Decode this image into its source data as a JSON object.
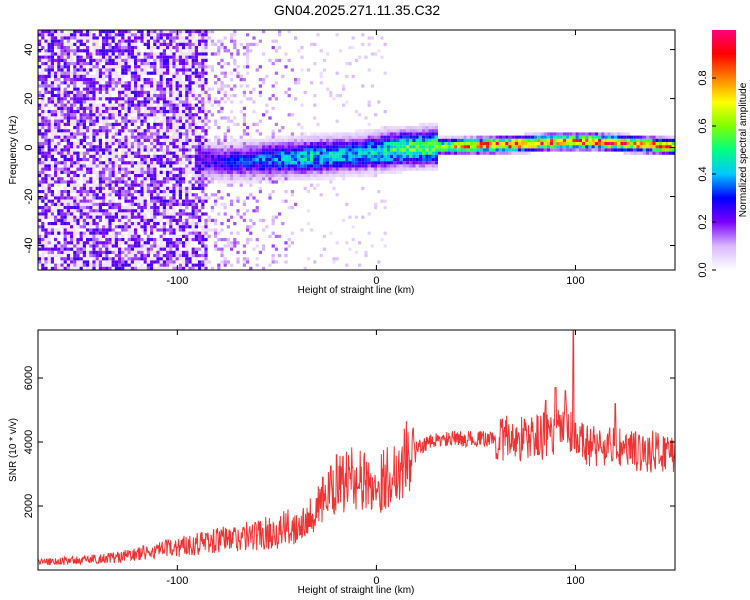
{
  "title": "GN04.2025.271.11.35.C32",
  "chart_data": [
    {
      "type": "heatmap",
      "xlabel": "Height of straight line (km)",
      "ylabel": "Frequency (Hz)",
      "xlim": [
        -170,
        150
      ],
      "ylim": [
        -50,
        48
      ],
      "xticks": [
        -100,
        0,
        100
      ],
      "yticks": [
        -40,
        -20,
        0,
        20,
        40
      ],
      "grid": false,
      "colorbar": {
        "label": "Normalized spectral amplitude",
        "range": [
          0.0,
          1.0
        ],
        "ticks": [
          0.0,
          0.2,
          0.4,
          0.6,
          0.8
        ],
        "colors": [
          "#ffffff",
          "#d9b8ff",
          "#7a00ff",
          "#0000ff",
          "#00c8ff",
          "#00ff80",
          "#80ff00",
          "#ffff00",
          "#ff8000",
          "#ff0000",
          "#ff0080"
        ]
      },
      "ridge": {
        "x": [
          -90,
          -70,
          -50,
          -30,
          -10,
          10,
          30,
          50,
          70,
          90,
          110,
          130,
          150
        ],
        "frequency": [
          -5,
          -5,
          -4,
          -3,
          -2,
          0,
          1,
          1.5,
          2,
          3,
          3,
          2,
          1
        ],
        "amplitude": [
          0.25,
          0.3,
          0.4,
          0.45,
          0.4,
          0.55,
          0.6,
          0.85,
          0.9,
          0.85,
          0.9,
          0.85,
          0.8
        ]
      }
    },
    {
      "type": "line",
      "xlabel": "Height of straight line (km)",
      "ylabel": "SNR (10 * v/v)",
      "xlim": [
        -170,
        150
      ],
      "ylim": [
        0,
        7500
      ],
      "xticks": [
        -100,
        0,
        100
      ],
      "yticks": [
        2000,
        4000,
        6000
      ],
      "grid": false,
      "color": "#ee3333",
      "series": [
        {
          "x": [
            -170,
            -150,
            -130,
            -110,
            -90,
            -70,
            -50,
            -40,
            -30,
            -25,
            -20,
            -15,
            -10,
            -5,
            0,
            5,
            10,
            15,
            20,
            25,
            30,
            40,
            50,
            60,
            70,
            80,
            90,
            95,
            100,
            110,
            120,
            130,
            140,
            150
          ],
          "y": [
            250,
            300,
            400,
            600,
            850,
            1000,
            1200,
            1400,
            1900,
            2300,
            2600,
            2800,
            2900,
            2700,
            2600,
            2900,
            3100,
            3500,
            3800,
            3950,
            4050,
            4100,
            4100,
            4100,
            4100,
            4150,
            4300,
            4500,
            4000,
            3900,
            3800,
            3700,
            3700,
            3700
          ]
        }
      ],
      "peaks": {
        "x": [
          -27,
          -20,
          -12,
          85,
          90,
          95,
          99,
          120
        ],
        "y": [
          2900,
          3600,
          3200,
          5300,
          5700,
          5600,
          7500,
          5200
        ]
      }
    }
  ]
}
